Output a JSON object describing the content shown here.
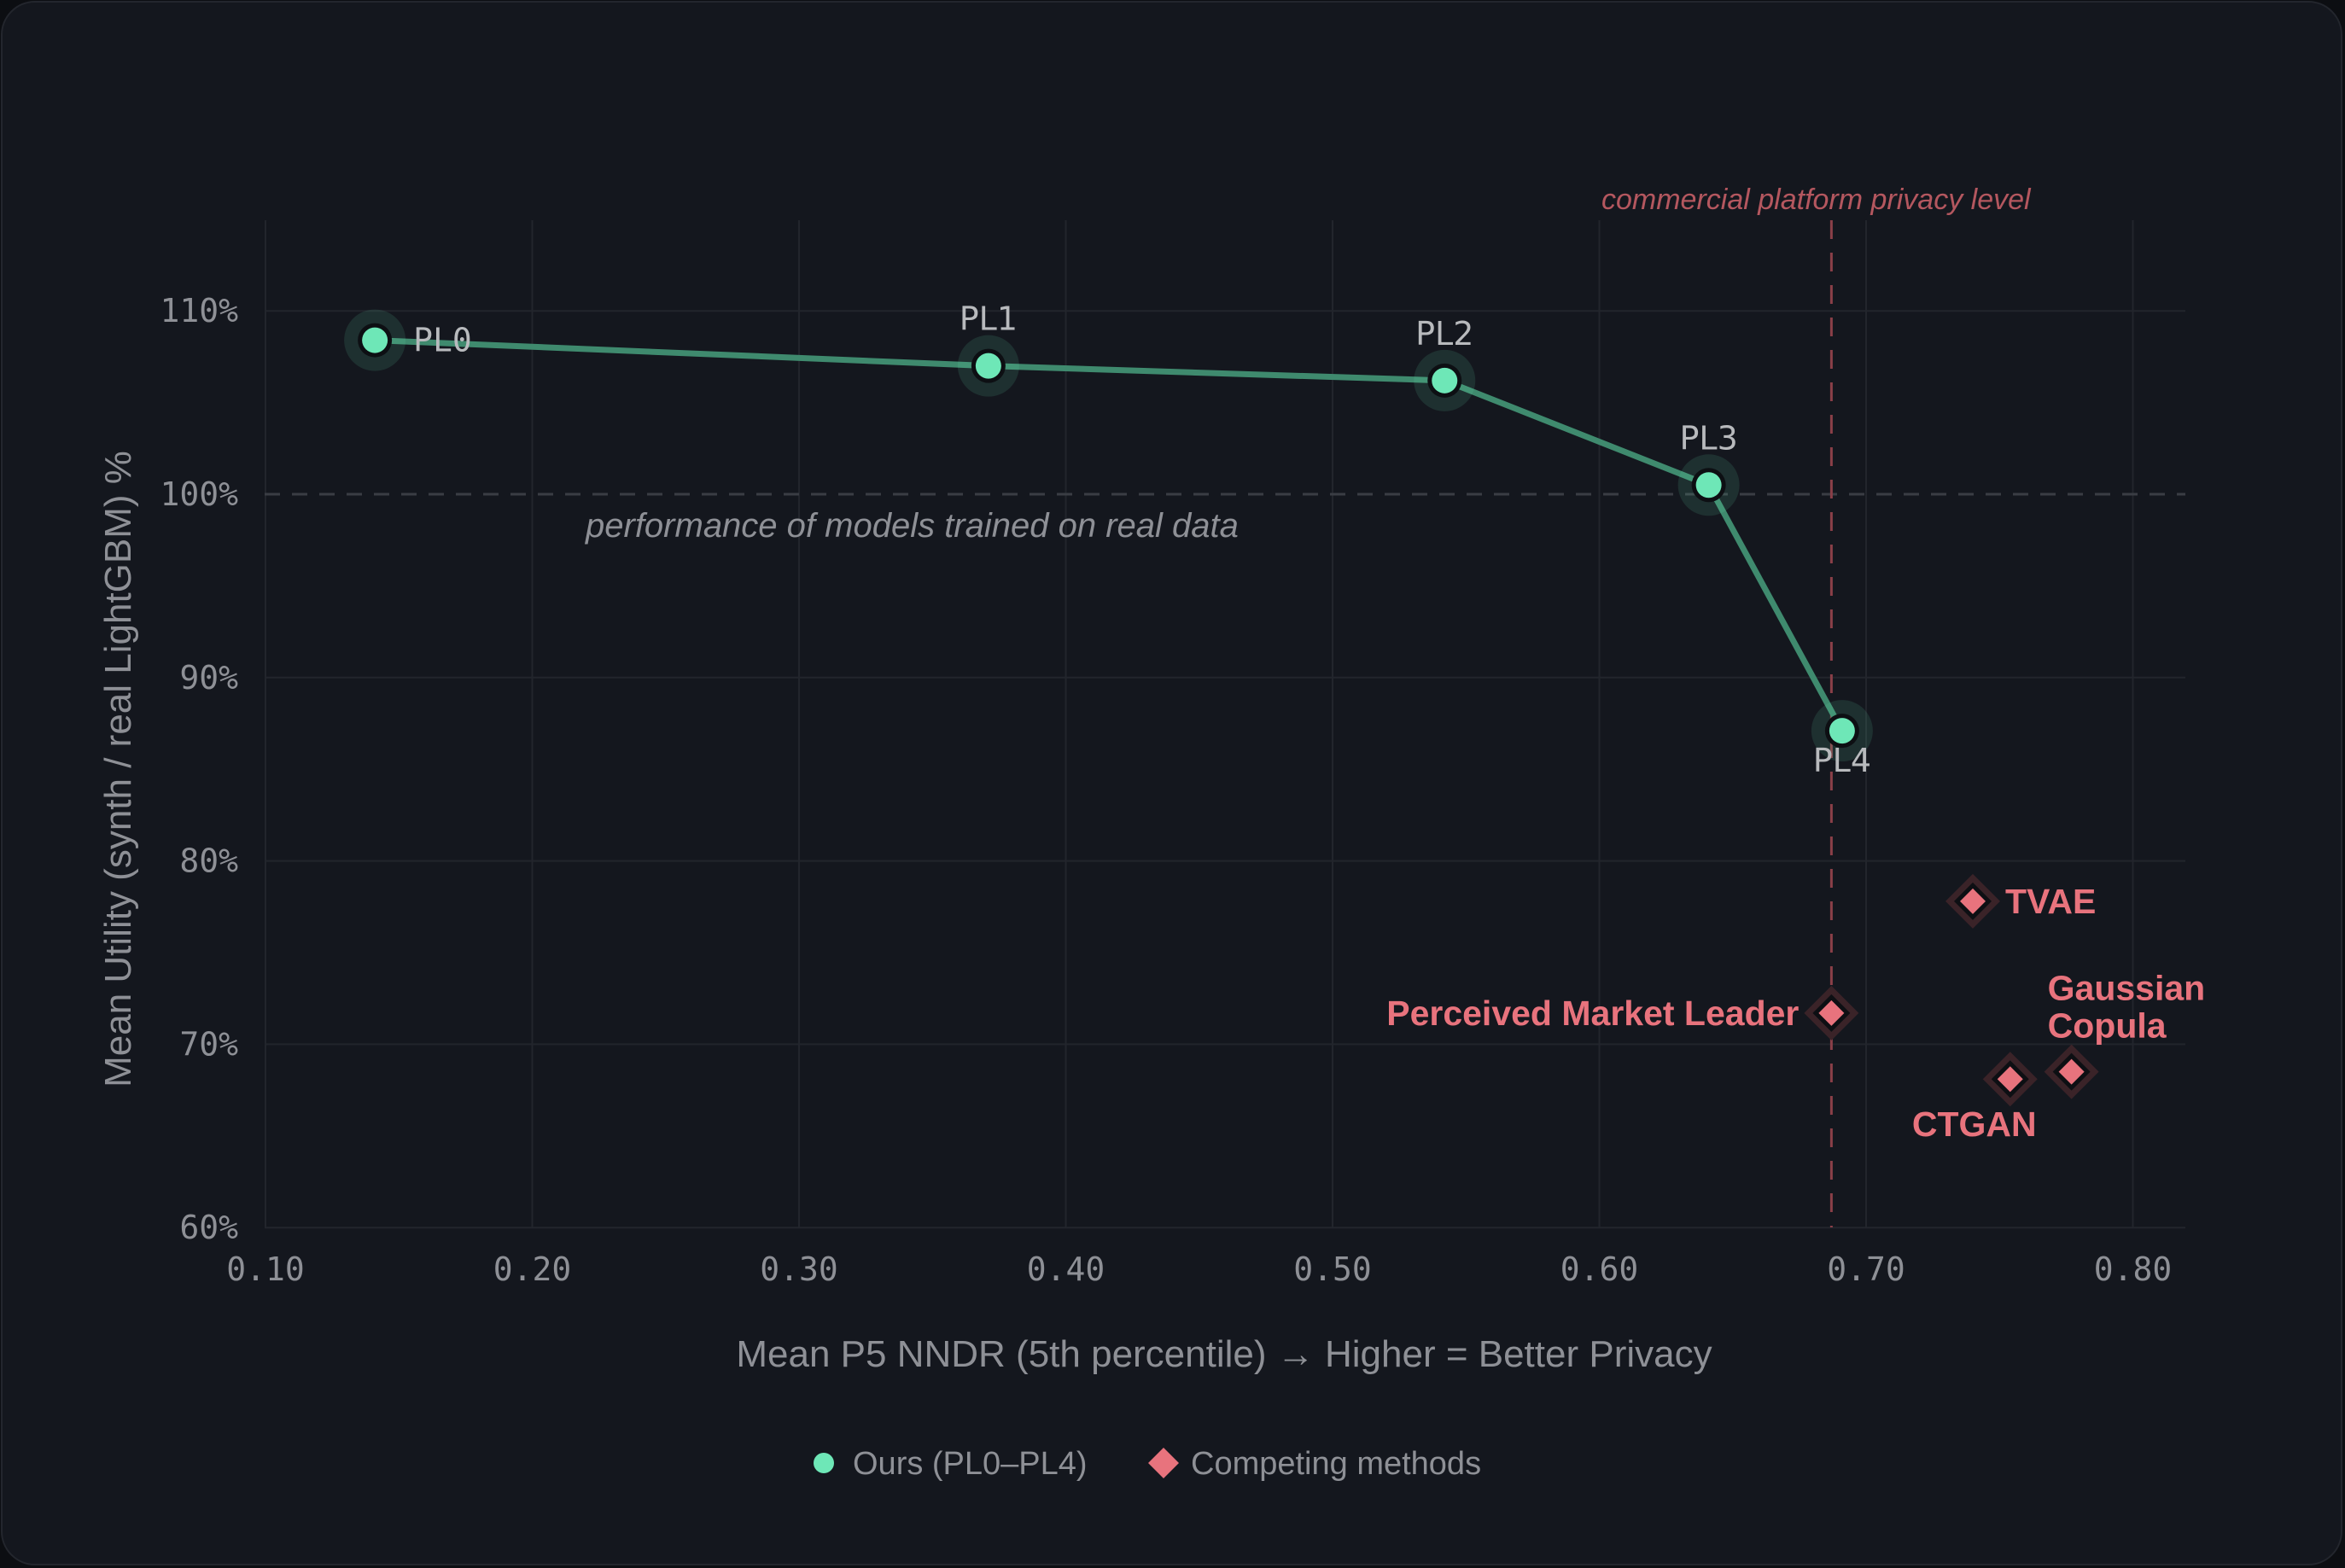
{
  "chart_data": {
    "type": "scatter",
    "title": "",
    "xlabel": "Mean P5 NNDR (5th percentile) → Higher = Better Privacy",
    "ylabel": "Mean Utility (synth / real LightGBM) %",
    "xlim": [
      0.1,
      0.82
    ],
    "ylim": [
      60,
      112
    ],
    "x_ticks": [
      "0.10",
      "0.20",
      "0.30",
      "0.40",
      "0.50",
      "0.60",
      "0.70",
      "0.80"
    ],
    "y_ticks": [
      "60%",
      "70%",
      "80%",
      "90%",
      "100%",
      "110%"
    ],
    "grid": true,
    "legend_position": "bottom-center",
    "series": [
      {
        "name": "Ours (PL0–PL4)",
        "marker": "circle",
        "connected": true,
        "color": "#6ee7b7",
        "line_color": "#3f8a6e",
        "points": [
          {
            "label": "PL0",
            "x": 0.141,
            "y": 108.4
          },
          {
            "label": "PL1",
            "x": 0.371,
            "y": 107.0
          },
          {
            "label": "PL2",
            "x": 0.542,
            "y": 106.2
          },
          {
            "label": "PL3",
            "x": 0.641,
            "y": 100.5
          },
          {
            "label": "PL4",
            "x": 0.691,
            "y": 87.1
          }
        ]
      },
      {
        "name": "Competing methods",
        "marker": "diamond",
        "connected": false,
        "color": "#e8737d",
        "points": [
          {
            "label": "TVAE",
            "x": 0.74,
            "y": 77.8
          },
          {
            "label": "Perceived Market Leader",
            "x": 0.687,
            "y": 71.7
          },
          {
            "label": "Gaussian Copula",
            "x": 0.777,
            "y": 68.5
          },
          {
            "label": "CTGAN",
            "x": 0.754,
            "y": 68.1
          }
        ]
      }
    ],
    "reference_lines": [
      {
        "orientation": "horizontal",
        "value": 100,
        "style": "dashed",
        "color": "#3a3d44",
        "label": "performance of models trained on real data"
      },
      {
        "orientation": "vertical",
        "value": 0.687,
        "style": "dashed",
        "color": "#8a3f48",
        "label": "commercial platform privacy level"
      }
    ]
  },
  "legend": {
    "ours": "Ours (PL0–PL4)",
    "competing": "Competing methods"
  },
  "colors": {
    "background": "#14171e",
    "grid": "#22252c",
    "ours": "#6ee7b7",
    "ours_line": "#3f8a6e",
    "competing": "#e8737d",
    "reference_red": "#8a3f48",
    "text_muted": "#8e9096"
  }
}
